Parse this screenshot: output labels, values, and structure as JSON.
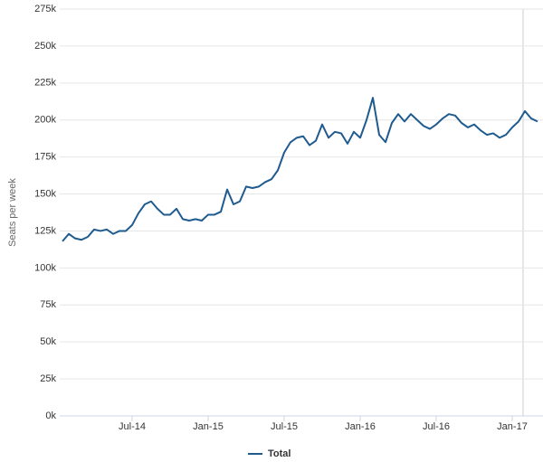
{
  "chart_data": {
    "type": "line",
    "y_label": "Seats per week",
    "categories": [
      null,
      null,
      null,
      null,
      null,
      null,
      null,
      null,
      null,
      null,
      null,
      "Jul-14",
      null,
      null,
      null,
      null,
      null,
      null,
      null,
      null,
      null,
      null,
      null,
      "Jan-15",
      null,
      null,
      null,
      null,
      null,
      null,
      null,
      null,
      null,
      null,
      null,
      "Jul-15",
      null,
      null,
      null,
      null,
      null,
      null,
      null,
      null,
      null,
      null,
      null,
      "Jan-16",
      null,
      null,
      null,
      null,
      null,
      null,
      null,
      null,
      null,
      null,
      null,
      "Jul-16",
      null,
      null,
      null,
      null,
      null,
      null,
      null,
      null,
      null,
      null,
      null,
      "Jan-17",
      null,
      null,
      null,
      null
    ],
    "series": [
      {
        "name": "Total",
        "color": "#1f5b8f",
        "values": [
          118000,
          123000,
          120000,
          119000,
          121000,
          126000,
          125000,
          126000,
          123000,
          125000,
          125000,
          129000,
          137000,
          143000,
          145000,
          140000,
          136000,
          136000,
          140000,
          133000,
          132000,
          133000,
          132000,
          136000,
          136000,
          138000,
          153000,
          143000,
          145000,
          155000,
          154000,
          155000,
          158000,
          160000,
          166000,
          178000,
          185000,
          188000,
          189000,
          183000,
          186000,
          197000,
          188000,
          192000,
          191000,
          184000,
          192000,
          188000,
          200000,
          215000,
          190000,
          185000,
          198000,
          204000,
          199000,
          204000,
          200000,
          196000,
          194000,
          197000,
          201000,
          204000,
          203000,
          198000,
          195000,
          197000,
          193000,
          190000,
          191000,
          188000,
          190000,
          195000,
          199000,
          206000,
          201000,
          199000
        ]
      }
    ],
    "ylim": [
      0,
      275000
    ],
    "yticks": [
      {
        "value": 0,
        "label": "0k"
      },
      {
        "value": 25000,
        "label": "25k"
      },
      {
        "value": 50000,
        "label": "50k"
      },
      {
        "value": 75000,
        "label": "75k"
      },
      {
        "value": 100000,
        "label": "100k"
      },
      {
        "value": 125000,
        "label": "125k"
      },
      {
        "value": 150000,
        "label": "150k"
      },
      {
        "value": 175000,
        "label": "175k"
      },
      {
        "value": 200000,
        "label": "200k"
      },
      {
        "value": 225000,
        "label": "225k"
      },
      {
        "value": 250000,
        "label": "250k"
      },
      {
        "value": 275000,
        "label": "275k"
      }
    ],
    "grid": true
  }
}
